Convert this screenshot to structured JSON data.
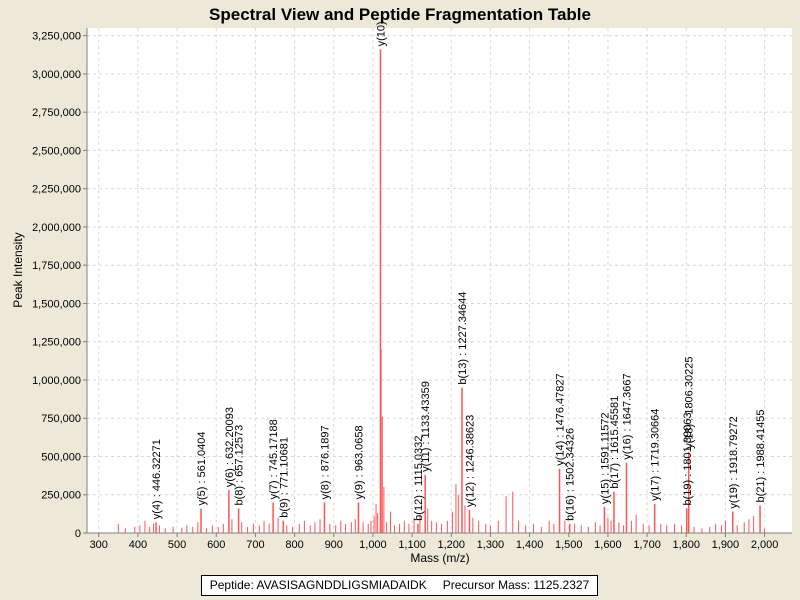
{
  "chart_data": {
    "type": "bar",
    "title": "Spectral View and Peptide Fragmentation Table",
    "xlabel": "Mass (m/z)",
    "ylabel": "Peak Intensity",
    "xlim": [
      270,
      2070
    ],
    "ylim": [
      0,
      3300000
    ],
    "x_ticks": [
      300,
      400,
      500,
      600,
      700,
      800,
      900,
      1000,
      1100,
      1200,
      1300,
      1400,
      1500,
      1600,
      1700,
      1800,
      1900,
      2000
    ],
    "x_tick_labels": [
      "300",
      "400",
      "500",
      "600",
      "700",
      "800",
      "900",
      "1,000",
      "1,100",
      "1,200",
      "1,300",
      "1,400",
      "1,500",
      "1,600",
      "1,700",
      "1,800",
      "1,900",
      "2,000"
    ],
    "y_ticks": [
      0,
      250000,
      500000,
      750000,
      1000000,
      1250000,
      1500000,
      1750000,
      2000000,
      2250000,
      2500000,
      2750000,
      3000000,
      3250000
    ],
    "y_tick_labels": [
      "0",
      "250,000",
      "500,000",
      "750,000",
      "1,000,000",
      "1,250,000",
      "1,500,000",
      "1,750,000",
      "2,000,000",
      "2,250,000",
      "2,500,000",
      "2,750,000",
      "3,000,000",
      "3,250,000"
    ],
    "grid": true,
    "peak_color": "#ff5555",
    "annotated_peaks": [
      {
        "label": "y(4) : 446.32271",
        "mz": 446.32,
        "intensity": 70000
      },
      {
        "label": "y(5) : 561.0404",
        "mz": 561.04,
        "intensity": 160000
      },
      {
        "label": "y(6) : 632.20093",
        "mz": 632.2,
        "intensity": 280000
      },
      {
        "label": "b(8) : 657.12573",
        "mz": 657.13,
        "intensity": 160000
      },
      {
        "label": "y(7) : 745.17188",
        "mz": 745.17,
        "intensity": 200000
      },
      {
        "label": "b(9) : 771.10681",
        "mz": 771.11,
        "intensity": 80000
      },
      {
        "label": "y(8) : 876.1897",
        "mz": 876.19,
        "intensity": 200000
      },
      {
        "label": "y(9) : 963.0658",
        "mz": 963.07,
        "intensity": 200000
      },
      {
        "label": "y(10)",
        "mz": 1019.3,
        "intensity": 3160000
      },
      {
        "label": "b(12) : 1115.0332",
        "mz": 1115.03,
        "intensity": 60000
      },
      {
        "label": "y(11) : 1133.43359",
        "mz": 1133.43,
        "intensity": 380000
      },
      {
        "label": "b(13) : 1227.34644",
        "mz": 1227.35,
        "intensity": 950000
      },
      {
        "label": "y(12) : 1246.38623",
        "mz": 1246.39,
        "intensity": 150000
      },
      {
        "label": "y(14) : 1476.47827",
        "mz": 1476.48,
        "intensity": 420000
      },
      {
        "label": "b(16) : 1502.34326",
        "mz": 1502.34,
        "intensity": 60000
      },
      {
        "label": "y(15) : 1591.11572",
        "mz": 1591.12,
        "intensity": 170000
      },
      {
        "label": "b(17) : 1615.45581",
        "mz": 1615.46,
        "intensity": 270000
      },
      {
        "label": "y(16) : 1647.3667",
        "mz": 1647.37,
        "intensity": 460000
      },
      {
        "label": "y(17) : 1719.30664",
        "mz": 1719.31,
        "intensity": 190000
      },
      {
        "label": "b(19) : 1801.39063",
        "mz": 1801.39,
        "intensity": 160000
      },
      {
        "label": "y(18) : 1806.30225",
        "mz": 1806.3,
        "intensity": 530000
      },
      {
        "label": "y(19) : 1918.79272",
        "mz": 1918.79,
        "intensity": 140000
      },
      {
        "label": "b(21) : 1988.41455",
        "mz": 1988.41,
        "intensity": 180000
      }
    ],
    "other_peaks": [
      [
        350,
        60000
      ],
      [
        368,
        30000
      ],
      [
        392,
        40000
      ],
      [
        405,
        50000
      ],
      [
        418,
        80000
      ],
      [
        430,
        40000
      ],
      [
        440,
        60000
      ],
      [
        455,
        50000
      ],
      [
        470,
        30000
      ],
      [
        490,
        40000
      ],
      [
        512,
        35000
      ],
      [
        525,
        50000
      ],
      [
        540,
        40000
      ],
      [
        553,
        70000
      ],
      [
        575,
        30000
      ],
      [
        590,
        50000
      ],
      [
        605,
        40000
      ],
      [
        618,
        60000
      ],
      [
        640,
        90000
      ],
      [
        665,
        70000
      ],
      [
        680,
        40000
      ],
      [
        695,
        60000
      ],
      [
        710,
        50000
      ],
      [
        722,
        80000
      ],
      [
        735,
        60000
      ],
      [
        758,
        100000
      ],
      [
        780,
        50000
      ],
      [
        795,
        40000
      ],
      [
        812,
        60000
      ],
      [
        825,
        80000
      ],
      [
        840,
        50000
      ],
      [
        852,
        70000
      ],
      [
        865,
        90000
      ],
      [
        890,
        60000
      ],
      [
        905,
        50000
      ],
      [
        918,
        80000
      ],
      [
        930,
        60000
      ],
      [
        945,
        70000
      ],
      [
        955,
        90000
      ],
      [
        975,
        70000
      ],
      [
        988,
        60000
      ],
      [
        995,
        80000
      ],
      [
        1003,
        110000
      ],
      [
        1008,
        190000
      ],
      [
        1012,
        130000
      ],
      [
        1021,
        1200000
      ],
      [
        1024,
        760000
      ],
      [
        1028,
        300000
      ],
      [
        1035,
        70000
      ],
      [
        1045,
        140000
      ],
      [
        1055,
        50000
      ],
      [
        1068,
        60000
      ],
      [
        1080,
        80000
      ],
      [
        1092,
        60000
      ],
      [
        1105,
        100000
      ],
      [
        1120,
        120000
      ],
      [
        1140,
        160000
      ],
      [
        1150,
        80000
      ],
      [
        1162,
        70000
      ],
      [
        1175,
        60000
      ],
      [
        1190,
        80000
      ],
      [
        1203,
        140000
      ],
      [
        1212,
        320000
      ],
      [
        1218,
        250000
      ],
      [
        1235,
        180000
      ],
      [
        1255,
        100000
      ],
      [
        1270,
        80000
      ],
      [
        1288,
        60000
      ],
      [
        1300,
        50000
      ],
      [
        1320,
        80000
      ],
      [
        1340,
        240000
      ],
      [
        1357,
        270000
      ],
      [
        1372,
        80000
      ],
      [
        1390,
        50000
      ],
      [
        1410,
        60000
      ],
      [
        1430,
        40000
      ],
      [
        1450,
        80000
      ],
      [
        1462,
        60000
      ],
      [
        1490,
        80000
      ],
      [
        1515,
        60000
      ],
      [
        1532,
        50000
      ],
      [
        1550,
        40000
      ],
      [
        1568,
        70000
      ],
      [
        1580,
        50000
      ],
      [
        1600,
        100000
      ],
      [
        1608,
        80000
      ],
      [
        1628,
        70000
      ],
      [
        1640,
        50000
      ],
      [
        1660,
        80000
      ],
      [
        1672,
        120000
      ],
      [
        1690,
        60000
      ],
      [
        1705,
        50000
      ],
      [
        1735,
        60000
      ],
      [
        1750,
        50000
      ],
      [
        1770,
        60000
      ],
      [
        1788,
        50000
      ],
      [
        1820,
        40000
      ],
      [
        1840,
        30000
      ],
      [
        1860,
        40000
      ],
      [
        1875,
        60000
      ],
      [
        1890,
        50000
      ],
      [
        1900,
        80000
      ],
      [
        1930,
        50000
      ],
      [
        1948,
        70000
      ],
      [
        1960,
        90000
      ],
      [
        1972,
        110000
      ],
      [
        2000,
        30000
      ]
    ]
  },
  "info": {
    "peptide": "Peptide: AVASISAGNDDLIGSMIADAIDK",
    "precursor": "Precursor Mass: 1125.2327"
  }
}
